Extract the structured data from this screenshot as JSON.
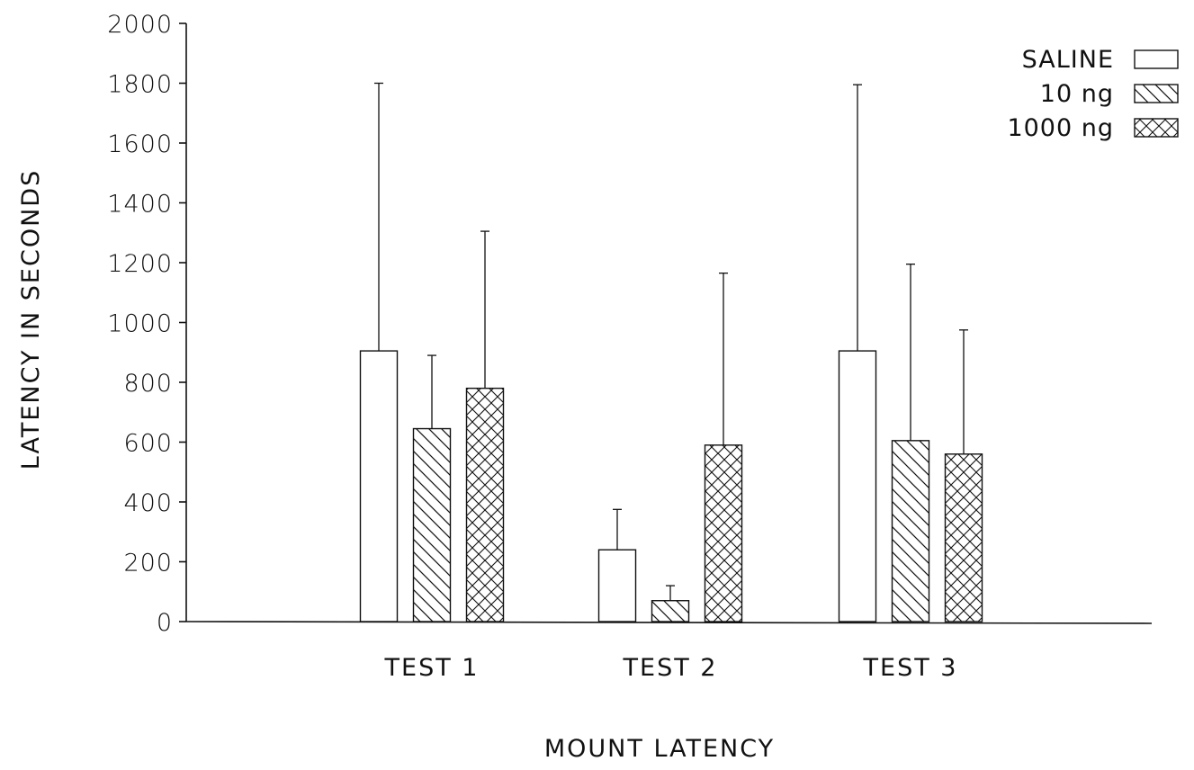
{
  "chart_data": {
    "type": "bar",
    "title": "",
    "xlabel": "MOUNT LATENCY",
    "ylabel": "LATENCY IN SECONDS",
    "ylim": [
      0,
      2000
    ],
    "yticks": [
      0,
      200,
      400,
      600,
      800,
      1000,
      1200,
      1400,
      1600,
      1800,
      2000
    ],
    "categories": [
      "TEST 1",
      "TEST 2",
      "TEST 3"
    ],
    "legend_position": "top-right",
    "grid": false,
    "series": [
      {
        "name": "SALINE",
        "pattern": "none",
        "values": [
          905,
          240,
          905
        ],
        "error_upper": [
          1800,
          375,
          1795
        ]
      },
      {
        "name": "10 ng",
        "pattern": "diagonal-hatch",
        "values": [
          645,
          70,
          605
        ],
        "error_upper": [
          890,
          120,
          1195
        ]
      },
      {
        "name": "1000 ng",
        "pattern": "cross-hatch",
        "values": [
          780,
          590,
          560
        ],
        "error_upper": [
          1305,
          1165,
          975
        ]
      }
    ],
    "colors": {
      "ink": "#111111",
      "fill": "#ffffff"
    }
  }
}
